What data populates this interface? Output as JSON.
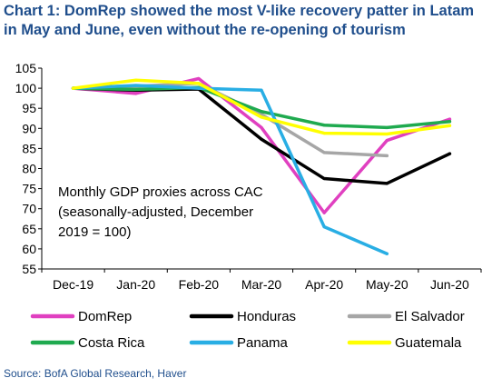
{
  "title": "Chart 1: DomRep showed the most V-like recovery patter in Latam in May and June, even without the re-opening of tourism",
  "source": "Source: BofA Global Research, Haver",
  "chart_data": {
    "type": "line",
    "categories": [
      "Dec-19",
      "Jan-20",
      "Feb-20",
      "Mar-20",
      "Apr-20",
      "May-20",
      "Jun-20"
    ],
    "ylim": [
      55,
      105
    ],
    "yticks": [
      55,
      60,
      65,
      70,
      75,
      80,
      85,
      90,
      95,
      100,
      105
    ],
    "grid": false,
    "legend_position": "bottom",
    "annotation": [
      "Monthly GDP proxies across CAC",
      "(seasonally-adjusted, December",
      "2019 = 100)"
    ],
    "series": [
      {
        "name": "DomRep",
        "color": "#e040c0",
        "values": [
          100,
          98.7,
          102.4,
          90.2,
          69.0,
          87.0,
          92.3
        ]
      },
      {
        "name": "Honduras",
        "color": "#000000",
        "values": [
          100,
          99.5,
          99.8,
          87.3,
          77.5,
          76.3,
          83.7
        ]
      },
      {
        "name": "El Salvador",
        "color": "#a6a6a6",
        "values": [
          100,
          100.5,
          101.2,
          93.5,
          84.0,
          83.2,
          null
        ]
      },
      {
        "name": "Costa Rica",
        "color": "#1faa4f",
        "values": [
          100,
          99.7,
          100.2,
          94.2,
          90.8,
          90.2,
          91.7
        ]
      },
      {
        "name": "Panama",
        "color": "#29aee4",
        "values": [
          100,
          100.7,
          100.0,
          99.5,
          65.5,
          58.8,
          null
        ]
      },
      {
        "name": "Guatemala",
        "color": "#ffff00",
        "values": [
          100,
          102.0,
          101.2,
          92.8,
          88.8,
          88.6,
          90.7
        ]
      }
    ]
  }
}
